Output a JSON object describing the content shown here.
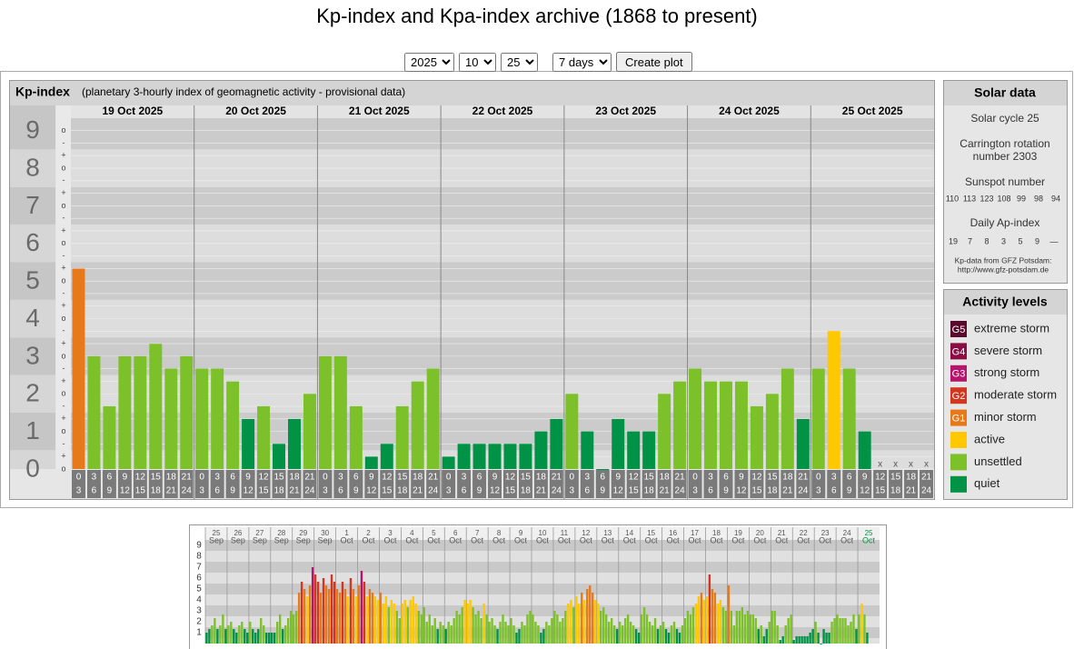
{
  "header": {
    "title": "Kp-index and Kpa-index archive (1868 to present)"
  },
  "controls": {
    "year": "2025",
    "month": "10",
    "day": "25",
    "period": "7 days",
    "button": "Create plot"
  },
  "chart_data": [
    {
      "type": "bar",
      "title": "Kp-index",
      "subtitle": "(planetary 3-hourly index of geomagnetic activity - provisional data)",
      "days": [
        "19 Oct 2025",
        "20 Oct 2025",
        "21 Oct 2025",
        "22 Oct 2025",
        "23 Oct 2025",
        "24 Oct 2025",
        "25 Oct 2025"
      ],
      "hours": [
        "0",
        "3",
        "6",
        "9",
        "12",
        "15",
        "18",
        "21",
        "24"
      ],
      "values": [
        5.33,
        3,
        1.67,
        3,
        3,
        3.33,
        2.67,
        3,
        2.67,
        2.67,
        2.33,
        1.33,
        1.67,
        0.67,
        1.33,
        2,
        3,
        3,
        1.67,
        0.33,
        0.67,
        1.67,
        2.33,
        2.67,
        0.33,
        0.67,
        0.67,
        0.67,
        0.67,
        0.67,
        1,
        1.33,
        2,
        1,
        0,
        1.33,
        1,
        1,
        2,
        2.33,
        2.67,
        2.33,
        2.33,
        2.33,
        1.67,
        2,
        2.67,
        1.33,
        2.67,
        3.67,
        2.67,
        1,
        null,
        null,
        null,
        null
      ],
      "missing_label": "x",
      "ylim": [
        0,
        9.33
      ],
      "yticks": [
        0,
        1,
        2,
        3,
        4,
        5,
        6,
        7,
        8,
        9
      ],
      "sub_labels": [
        "-",
        "o",
        "+"
      ]
    },
    {
      "type": "bar",
      "days": [
        "25",
        "26",
        "27",
        "28",
        "29",
        "30",
        "1",
        "2",
        "3",
        "4",
        "5",
        "6",
        "7",
        "8",
        "9",
        "10",
        "11",
        "12",
        "13",
        "14",
        "15",
        "16",
        "17",
        "18",
        "19",
        "20",
        "21",
        "22",
        "23",
        "24",
        "25"
      ],
      "months": [
        "Sep",
        "Sep",
        "Sep",
        "Sep",
        "Sep",
        "Sep",
        "Oct",
        "Oct",
        "Oct",
        "Oct",
        "Oct",
        "Oct",
        "Oct",
        "Oct",
        "Oct",
        "Oct",
        "Oct",
        "Oct",
        "Oct",
        "Oct",
        "Oct",
        "Oct",
        "Oct",
        "Oct",
        "Oct",
        "Oct",
        "Oct",
        "Oct",
        "Oct",
        "Oct",
        "Oct"
      ],
      "values": [
        1,
        1.33,
        1.67,
        2.33,
        1.33,
        1.67,
        2.67,
        1.33,
        1.67,
        2,
        1.33,
        1,
        1.67,
        2,
        1.33,
        1,
        2,
        1.33,
        1,
        1.33,
        2.33,
        1.67,
        1,
        1,
        1,
        1,
        2,
        2.67,
        1.33,
        1.67,
        2.33,
        3,
        2.67,
        3,
        4.67,
        5.67,
        5,
        4.33,
        5.33,
        7,
        6.33,
        5.67,
        4.67,
        6,
        5.33,
        5,
        6.33,
        5.67,
        5,
        4.67,
        5.67,
        5,
        4.33,
        6,
        5,
        4.33,
        5.33,
        6.67,
        5.67,
        4.33,
        5,
        4.67,
        4.33,
        4,
        4.67,
        3.67,
        4.33,
        3.33,
        4,
        3.67,
        3,
        2.33,
        3.67,
        4,
        3.33,
        4,
        4.33,
        3.67,
        3,
        2.67,
        3.33,
        2,
        2.67,
        1.67,
        2.33,
        1.33,
        2,
        1.67,
        1.33,
        2,
        1.67,
        2.33,
        3,
        2.67,
        3.33,
        4,
        3.67,
        4,
        3.33,
        2.67,
        3,
        2.33,
        3.67,
        2.67,
        2,
        2.33,
        1.67,
        1.33,
        2,
        2.67,
        2,
        1.67,
        2.33,
        1.67,
        1,
        1.33,
        2,
        1.67,
        2.67,
        3,
        2.67,
        2,
        1.67,
        1,
        1.33,
        2,
        1.67,
        2.33,
        3,
        2.67,
        2,
        2.33,
        3,
        3.67,
        4,
        3.33,
        4.33,
        3.67,
        4.67,
        4,
        5,
        5.33,
        4.67,
        4,
        3.67,
        3,
        3.33,
        2.67,
        2,
        2.33,
        1.67,
        1.33,
        2,
        1.67,
        2.33,
        2.67,
        2,
        1.67,
        1.33,
        1,
        2.67,
        3.33,
        2.67,
        2,
        1.67,
        2.33,
        1.33,
        1.67,
        2,
        1.33,
        1,
        1.67,
        2,
        1.33,
        1,
        1.67,
        2.33,
        3,
        2.67,
        3.33,
        3.67,
        4.33,
        4.67,
        4,
        4.33,
        6.33,
        5,
        4.67,
        3.67,
        4,
        3.33,
        3,
        5.33,
        3,
        1.67,
        3,
        3,
        3.33,
        2.67,
        3,
        2.67,
        2.67,
        2.33,
        1.33,
        1.67,
        0.67,
        1.33,
        2,
        3,
        3,
        1.67,
        0.33,
        0.67,
        1.67,
        2.33,
        2.67,
        0.33,
        0.67,
        0.67,
        0.67,
        0.67,
        0.67,
        1,
        1.33,
        2,
        1,
        0,
        1.33,
        1,
        1,
        2,
        2.33,
        2.67,
        2.33,
        2.33,
        2.33,
        1.67,
        2,
        2.67,
        1.33,
        2.67,
        3.67,
        2.67,
        1,
        null,
        null,
        null,
        null
      ],
      "ylim": [
        0,
        9.5
      ],
      "yticks": [
        1,
        2,
        3,
        4,
        5,
        6,
        7,
        8,
        9
      ]
    }
  ],
  "solar_data": {
    "title": "Solar data",
    "cycle": "Solar cycle 25",
    "carrington": "Carrington rotation number 2303",
    "sunspot_title": "Sunspot number",
    "sunspot_numbers": [
      110,
      113,
      123,
      108,
      99,
      98,
      94
    ],
    "ap_title": "Daily Ap-index",
    "ap_values": [
      19,
      7,
      8,
      3,
      5,
      9,
      "—"
    ],
    "source": "Kp-data from GFZ Potsdam:",
    "source_url": "http://www.gfz-potsdam.de"
  },
  "activity_levels": {
    "title": "Activity levels",
    "items": [
      {
        "badge": "G5",
        "label": "extreme storm",
        "color": "#5a0a2c"
      },
      {
        "badge": "G4",
        "label": "severe storm",
        "color": "#8c0c44"
      },
      {
        "badge": "G3",
        "label": "strong storm",
        "color": "#b5156c"
      },
      {
        "badge": "G2",
        "label": "moderate storm",
        "color": "#d4351e"
      },
      {
        "badge": "G1",
        "label": "minor storm",
        "color": "#e6791a"
      },
      {
        "badge": "",
        "label": "active",
        "color": "#ffc800"
      },
      {
        "badge": "",
        "label": "unsettled",
        "color": "#7cc12a"
      },
      {
        "badge": "",
        "label": "quiet",
        "color": "#009245"
      }
    ]
  }
}
